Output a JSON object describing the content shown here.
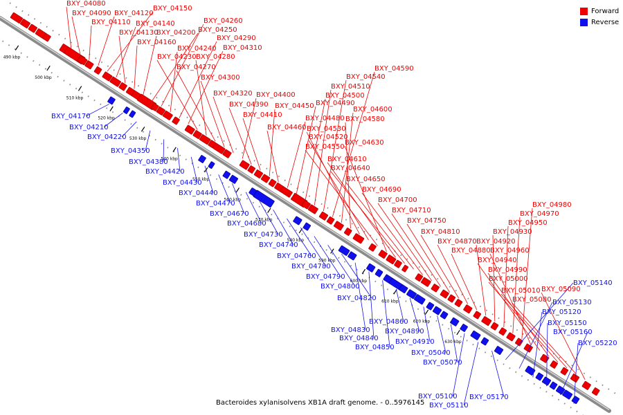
{
  "caption": "Bacteroides xylanisolvens XB1A draft genome. - 0..5976145",
  "legend": [
    {
      "label": "Forward",
      "color": "#ee0000"
    },
    {
      "label": "Reverse",
      "color": "#1010ee"
    }
  ],
  "colors": {
    "forward": "#ee0000",
    "reverse": "#1010ee",
    "backbone": "#8a8a8a",
    "tick": "#000000"
  },
  "ticks": [
    "490 kbp",
    "500 kbp",
    "510 kbp",
    "520 kbp",
    "530 kbp",
    "540 kbp",
    "550 kbp",
    "560 kbp",
    "570 kbp",
    "580 kbp",
    "590 kbp",
    "600 kbp",
    "610 kbp",
    "620 kbp",
    "630 kbp"
  ],
  "forward_labels": [
    "BXY_04080",
    "BXY_04090",
    "BXY_04110",
    "BXY_04120",
    "BXY_04150",
    "BXY_04140",
    "BXY_04130",
    "BXY_04160",
    "BXY_04200",
    "BXY_04250",
    "BXY_04260",
    "BXY_04240",
    "BXY_04290",
    "BXY_04310",
    "BXY_04230",
    "BXY_04280",
    "BXY_04270",
    "BXY_04300",
    "BXY_04320",
    "BXY_04400",
    "BXY_04390",
    "BXY_04410",
    "BXY_04450",
    "BXY_04460",
    "BXY_04480",
    "BXY_04490",
    "BXY_04500",
    "BXY_04510",
    "BXY_04540",
    "BXY_04590",
    "BXY_04600",
    "BXY_04580",
    "BXY_04530",
    "BXY_04520",
    "BXY_04550",
    "BXY_04630",
    "BXY_04610",
    "BXY_04640",
    "BXY_04650",
    "BXY_04690",
    "BXY_04700",
    "BXY_04710",
    "BXY_04750",
    "BXY_04810",
    "BXY_04870",
    "BXY_04880",
    "BXY_04920",
    "BXY_04930",
    "BXY_04950",
    "BXY_04970",
    "BXY_04980",
    "BXY_04960",
    "BXY_04940",
    "BXY_04990",
    "BXY_05000",
    "BXY_05010",
    "BXY_05080",
    "BXY_05090"
  ],
  "reverse_labels": [
    "BXY_04170",
    "BXY_04210",
    "BXY_04220",
    "BXY_04350",
    "BXY_04380",
    "BXY_04420",
    "BXY_04430",
    "BXY_04440",
    "BXY_04470",
    "BXY_04670",
    "BXY_04680",
    "BXY_04730",
    "BXY_04740",
    "BXY_04760",
    "BXY_04780",
    "BXY_04790",
    "BXY_04800",
    "BXY_04820",
    "BXY_04830",
    "BXY_04840",
    "BXY_04850",
    "BXY_04860",
    "BXY_04890",
    "BXY_04910",
    "BXY_05040",
    "BXY_05070",
    "BXY_05100",
    "BXY_05110",
    "BXY_05170",
    "BXY_05140",
    "BXY_05130",
    "BXY_05120",
    "BXY_05150",
    "BXY_05160",
    "BXY_05220"
  ]
}
